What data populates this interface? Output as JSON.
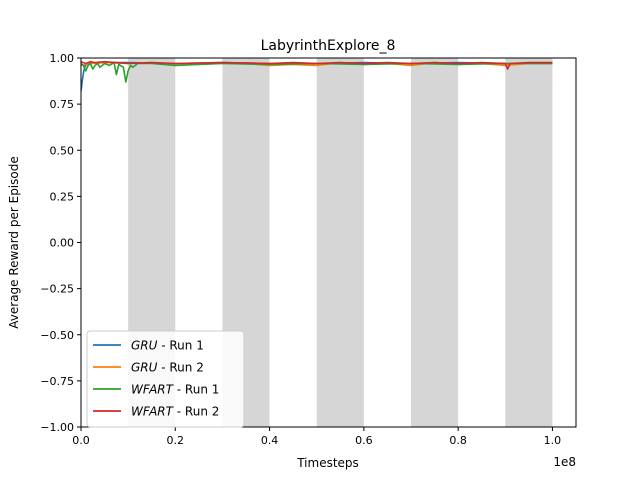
{
  "chart_data": {
    "type": "line",
    "title": "LabyrinthExplore_8",
    "xlabel": "Timesteps",
    "ylabel": "Average Reward per Episode",
    "x_offset_label": "1e8",
    "xlim": [
      0,
      1.05
    ],
    "ylim": [
      -1.0,
      1.0
    ],
    "x_ticks": [
      0.0,
      0.2,
      0.4,
      0.6,
      0.8,
      1.0
    ],
    "x_tick_labels": [
      "0.0",
      "0.2",
      "0.4",
      "0.6",
      "0.8",
      "1.0"
    ],
    "y_ticks": [
      -1.0,
      -0.75,
      -0.5,
      -0.25,
      0.0,
      0.25,
      0.5,
      0.75,
      1.0
    ],
    "y_tick_labels": [
      "−1.00",
      "−0.75",
      "−0.50",
      "−0.25",
      "0.00",
      "0.25",
      "0.50",
      "0.75",
      "1.00"
    ],
    "grid": false,
    "legend_position": "lower-left",
    "shaded_regions": [
      [
        0.1,
        0.2
      ],
      [
        0.3,
        0.4
      ],
      [
        0.5,
        0.6
      ],
      [
        0.7,
        0.8
      ],
      [
        0.9,
        1.0
      ]
    ],
    "shade_color": "#d6d6d6",
    "series": [
      {
        "name": "GRU",
        "name_suffix": " - Run 1",
        "color": "#1f77b4",
        "x": [
          0.0,
          0.002,
          0.004,
          0.006,
          0.008,
          0.01,
          0.014,
          0.02,
          0.05,
          0.1,
          0.2,
          0.3,
          0.4,
          0.5,
          0.6,
          0.7,
          0.8,
          0.9,
          1.0
        ],
        "y": [
          0.82,
          0.86,
          0.9,
          0.93,
          0.95,
          0.96,
          0.97,
          0.97,
          0.975,
          0.975,
          0.97,
          0.975,
          0.97,
          0.97,
          0.975,
          0.97,
          0.975,
          0.97,
          0.97
        ]
      },
      {
        "name": "GRU",
        "name_suffix": " - Run 2",
        "color": "#ff7f0e",
        "x": [
          0.0,
          0.02,
          0.05,
          0.1,
          0.15,
          0.2,
          0.25,
          0.3,
          0.35,
          0.4,
          0.45,
          0.5,
          0.55,
          0.6,
          0.65,
          0.7,
          0.75,
          0.8,
          0.85,
          0.9,
          0.95,
          1.0
        ],
        "y": [
          0.96,
          0.97,
          0.975,
          0.97,
          0.975,
          0.96,
          0.97,
          0.975,
          0.97,
          0.96,
          0.965,
          0.96,
          0.975,
          0.965,
          0.97,
          0.96,
          0.975,
          0.965,
          0.97,
          0.96,
          0.97,
          0.975
        ]
      },
      {
        "name": "WFART",
        "name_suffix": " - Run 1",
        "color": "#2ca02c",
        "x": [
          0.0,
          0.005,
          0.01,
          0.015,
          0.02,
          0.025,
          0.03,
          0.035,
          0.04,
          0.05,
          0.06,
          0.07,
          0.075,
          0.08,
          0.09,
          0.095,
          0.1,
          0.105,
          0.11,
          0.12,
          0.15,
          0.2,
          0.3,
          0.4,
          0.5,
          0.6,
          0.7,
          0.8,
          0.9,
          1.0
        ],
        "y": [
          0.97,
          0.96,
          0.93,
          0.96,
          0.97,
          0.94,
          0.96,
          0.97,
          0.95,
          0.97,
          0.96,
          0.975,
          0.91,
          0.965,
          0.95,
          0.87,
          0.93,
          0.96,
          0.95,
          0.97,
          0.97,
          0.96,
          0.97,
          0.965,
          0.97,
          0.965,
          0.97,
          0.965,
          0.97,
          0.97
        ]
      },
      {
        "name": "WFART",
        "name_suffix": " - Run 2",
        "color": "#d62728",
        "x": [
          0.0,
          0.01,
          0.02,
          0.03,
          0.05,
          0.1,
          0.15,
          0.2,
          0.3,
          0.4,
          0.45,
          0.5,
          0.55,
          0.6,
          0.65,
          0.7,
          0.75,
          0.8,
          0.85,
          0.9,
          0.905,
          0.91,
          0.95,
          1.0
        ],
        "y": [
          0.98,
          0.97,
          0.98,
          0.975,
          0.98,
          0.97,
          0.975,
          0.97,
          0.975,
          0.97,
          0.975,
          0.97,
          0.975,
          0.97,
          0.975,
          0.97,
          0.975,
          0.97,
          0.975,
          0.97,
          0.94,
          0.97,
          0.975,
          0.975
        ]
      }
    ]
  }
}
